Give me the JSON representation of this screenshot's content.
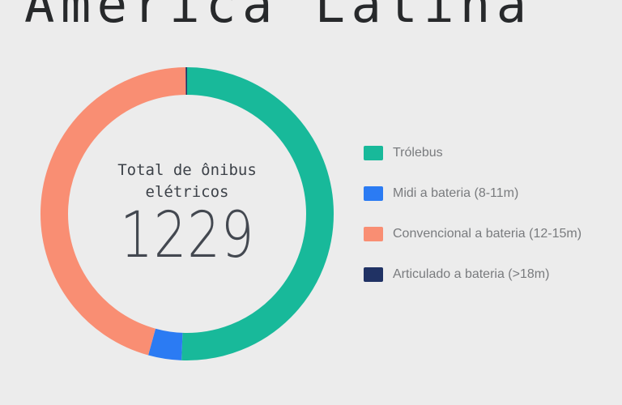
{
  "page": {
    "background_color": "#ececec",
    "title_color": "#27292b",
    "legend_text_color": "#797b7e"
  },
  "title": "América Latina",
  "donut_center": {
    "label_lines": [
      "Total de ônibus",
      "elétricos"
    ],
    "total": "1229"
  },
  "chart_data": {
    "type": "pie",
    "donut": true,
    "title": "América Latina",
    "categories": [
      "Trólebus",
      "Midi a bateria (8-11m)",
      "Convencional a bateria (12-15m)",
      "Articulado a bateria (>18m)"
    ],
    "values": [
      622,
      45,
      560,
      2
    ],
    "colors": [
      "#18b99a",
      "#2b7bf3",
      "#f98e73",
      "#203264"
    ],
    "total_label": "Total de ônibus elétricos",
    "total_value": 1229,
    "legend_position": "right",
    "start_angle_deg": 0,
    "direction": "clockwise"
  }
}
